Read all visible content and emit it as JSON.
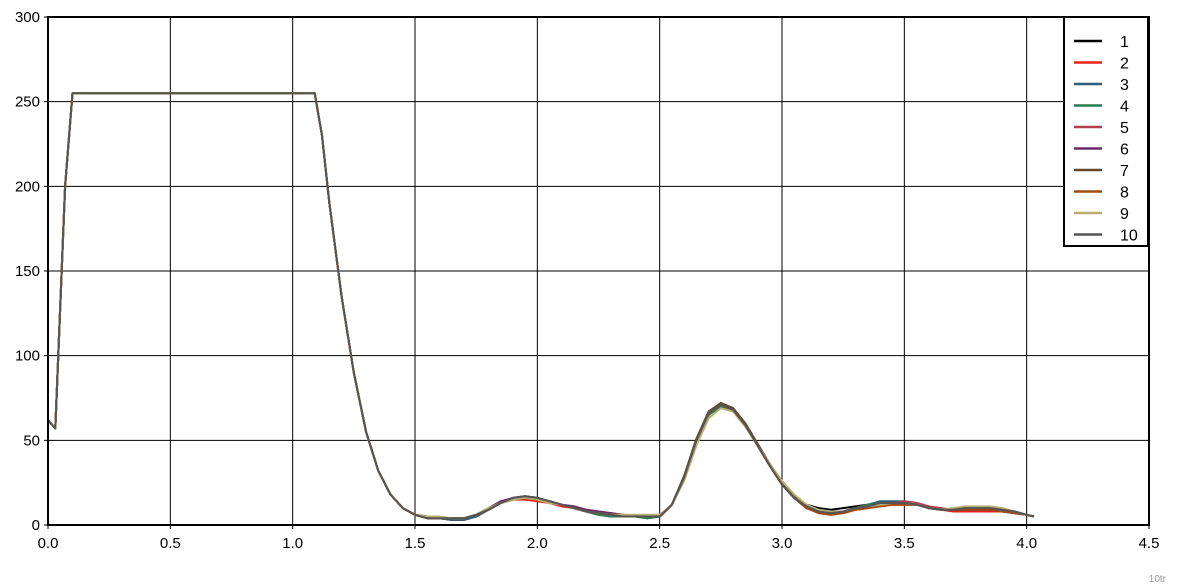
{
  "chart_data": {
    "type": "line",
    "title": "",
    "xlabel": "",
    "ylabel": "",
    "xlim": [
      0.0,
      4.5
    ],
    "ylim": [
      0,
      300
    ],
    "x_ticks": [
      "0.0",
      "0.5",
      "1.0",
      "1.5",
      "2.0",
      "2.5",
      "3.0",
      "3.5",
      "4.0",
      "4.5"
    ],
    "y_ticks": [
      "0",
      "50",
      "100",
      "150",
      "200",
      "250",
      "300"
    ],
    "grid": true,
    "legend_position": "top-right",
    "x": [
      0.0,
      0.03,
      0.07,
      0.1,
      0.3,
      0.6,
      0.9,
      1.09,
      1.12,
      1.15,
      1.2,
      1.25,
      1.3,
      1.35,
      1.4,
      1.45,
      1.5,
      1.55,
      1.6,
      1.65,
      1.7,
      1.75,
      1.8,
      1.85,
      1.9,
      1.95,
      2.0,
      2.05,
      2.1,
      2.15,
      2.2,
      2.25,
      2.3,
      2.35,
      2.4,
      2.45,
      2.5,
      2.55,
      2.6,
      2.65,
      2.7,
      2.75,
      2.8,
      2.85,
      2.9,
      2.95,
      3.0,
      3.05,
      3.1,
      3.15,
      3.2,
      3.25,
      3.3,
      3.35,
      3.4,
      3.45,
      3.5,
      3.55,
      3.6,
      3.65,
      3.7,
      3.75,
      3.8,
      3.85,
      3.9,
      3.95,
      4.0,
      4.03
    ],
    "series": [
      {
        "name": "1",
        "color": "#000000",
        "values": [
          62,
          57,
          200,
          255,
          255,
          255,
          255,
          255,
          230,
          190,
          135,
          90,
          55,
          32,
          18,
          10,
          6,
          4,
          4,
          3,
          3,
          5,
          9,
          13,
          15,
          16,
          15,
          14,
          12,
          10,
          8,
          6,
          6,
          5,
          5,
          5,
          5,
          12,
          28,
          50,
          66,
          71,
          68,
          59,
          47,
          35,
          24,
          16,
          12,
          10,
          9,
          10,
          11,
          12,
          13,
          13,
          13,
          12,
          10,
          9,
          9,
          10,
          10,
          10,
          9,
          8,
          6,
          5
        ]
      },
      {
        "name": "2",
        "color": "#e8201a",
        "values": [
          62,
          57,
          200,
          255,
          255,
          255,
          255,
          255,
          230,
          190,
          135,
          90,
          55,
          32,
          18,
          10,
          6,
          4,
          4,
          3,
          3,
          5,
          9,
          13,
          15,
          15,
          14,
          13,
          11,
          10,
          8,
          7,
          6,
          5,
          5,
          5,
          5,
          12,
          28,
          50,
          66,
          72,
          69,
          59,
          47,
          35,
          24,
          16,
          10,
          7,
          6,
          7,
          9,
          10,
          11,
          12,
          12,
          12,
          10,
          9,
          8,
          8,
          8,
          8,
          8,
          7,
          6,
          5
        ]
      },
      {
        "name": "3",
        "color": "#2b5f7a",
        "values": [
          62,
          57,
          200,
          255,
          255,
          255,
          255,
          255,
          230,
          190,
          135,
          90,
          55,
          32,
          18,
          10,
          6,
          4,
          4,
          3,
          3,
          5,
          9,
          13,
          16,
          17,
          16,
          14,
          12,
          10,
          8,
          6,
          5,
          5,
          5,
          4,
          5,
          12,
          27,
          49,
          65,
          70,
          68,
          59,
          47,
          35,
          25,
          17,
          11,
          8,
          7,
          8,
          10,
          12,
          14,
          14,
          14,
          13,
          11,
          9,
          9,
          10,
          10,
          10,
          9,
          8,
          6,
          5
        ]
      },
      {
        "name": "4",
        "color": "#2a7d4f",
        "values": [
          62,
          57,
          200,
          255,
          255,
          255,
          255,
          255,
          230,
          190,
          135,
          90,
          55,
          32,
          18,
          10,
          6,
          4,
          4,
          4,
          4,
          6,
          9,
          13,
          16,
          17,
          16,
          14,
          12,
          10,
          8,
          6,
          5,
          5,
          5,
          4,
          5,
          12,
          27,
          49,
          65,
          70,
          68,
          59,
          47,
          35,
          24,
          16,
          10,
          8,
          7,
          8,
          10,
          12,
          13,
          13,
          13,
          12,
          10,
          9,
          9,
          10,
          10,
          10,
          9,
          8,
          6,
          5
        ]
      },
      {
        "name": "5",
        "color": "#b04050",
        "values": [
          62,
          57,
          200,
          255,
          255,
          255,
          255,
          255,
          230,
          190,
          135,
          90,
          55,
          32,
          18,
          10,
          6,
          4,
          4,
          4,
          4,
          6,
          10,
          13,
          15,
          16,
          15,
          14,
          12,
          11,
          9,
          8,
          7,
          6,
          5,
          5,
          5,
          12,
          28,
          50,
          66,
          71,
          68,
          59,
          47,
          35,
          24,
          16,
          10,
          8,
          7,
          8,
          9,
          11,
          12,
          13,
          14,
          13,
          11,
          10,
          9,
          9,
          9,
          9,
          9,
          8,
          6,
          5
        ]
      },
      {
        "name": "6",
        "color": "#6a2a6a",
        "values": [
          62,
          57,
          200,
          255,
          255,
          255,
          255,
          255,
          230,
          190,
          135,
          90,
          55,
          32,
          18,
          10,
          6,
          5,
          4,
          4,
          4,
          6,
          10,
          14,
          16,
          17,
          16,
          14,
          12,
          11,
          9,
          8,
          7,
          6,
          5,
          5,
          5,
          12,
          28,
          50,
          66,
          72,
          69,
          60,
          48,
          36,
          25,
          17,
          11,
          8,
          7,
          8,
          9,
          10,
          12,
          13,
          13,
          12,
          10,
          9,
          9,
          9,
          9,
          9,
          8,
          7,
          6,
          5
        ]
      },
      {
        "name": "7",
        "color": "#5e4a28",
        "values": [
          62,
          57,
          200,
          255,
          255,
          255,
          255,
          255,
          230,
          190,
          135,
          90,
          55,
          32,
          18,
          10,
          6,
          5,
          4,
          4,
          4,
          6,
          9,
          13,
          15,
          16,
          15,
          14,
          12,
          10,
          8,
          7,
          6,
          5,
          5,
          5,
          5,
          12,
          29,
          51,
          67,
          72,
          69,
          60,
          48,
          36,
          25,
          17,
          11,
          8,
          7,
          8,
          10,
          11,
          12,
          13,
          13,
          12,
          10,
          9,
          9,
          9,
          10,
          10,
          9,
          8,
          6,
          5
        ]
      },
      {
        "name": "8",
        "color": "#a04a10",
        "values": [
          62,
          57,
          200,
          255,
          255,
          255,
          255,
          255,
          230,
          190,
          135,
          90,
          55,
          32,
          18,
          10,
          6,
          4,
          4,
          4,
          4,
          6,
          9,
          13,
          15,
          16,
          15,
          14,
          12,
          10,
          8,
          7,
          6,
          6,
          5,
          5,
          5,
          12,
          28,
          50,
          66,
          71,
          68,
          59,
          47,
          35,
          24,
          16,
          10,
          7,
          6,
          7,
          9,
          10,
          11,
          12,
          12,
          12,
          10,
          9,
          9,
          9,
          9,
          9,
          8,
          7,
          6,
          5
        ]
      },
      {
        "name": "9",
        "color": "#b9b070",
        "values": [
          62,
          57,
          200,
          255,
          255,
          255,
          255,
          255,
          230,
          190,
          135,
          90,
          55,
          32,
          18,
          10,
          6,
          5,
          5,
          4,
          4,
          6,
          10,
          13,
          15,
          16,
          15,
          13,
          12,
          10,
          8,
          7,
          6,
          6,
          6,
          6,
          6,
          12,
          26,
          47,
          63,
          69,
          67,
          58,
          47,
          36,
          26,
          18,
          12,
          9,
          8,
          8,
          10,
          11,
          12,
          13,
          13,
          12,
          10,
          9,
          10,
          11,
          11,
          11,
          10,
          8,
          6,
          5
        ]
      },
      {
        "name": "10",
        "color": "#555555",
        "values": [
          62,
          57,
          200,
          255,
          255,
          255,
          255,
          255,
          230,
          190,
          135,
          90,
          55,
          32,
          18,
          10,
          6,
          4,
          4,
          4,
          4,
          6,
          9,
          13,
          16,
          17,
          16,
          14,
          12,
          10,
          8,
          7,
          6,
          5,
          5,
          5,
          5,
          12,
          28,
          50,
          66,
          71,
          68,
          59,
          47,
          35,
          24,
          16,
          11,
          8,
          7,
          8,
          10,
          11,
          13,
          13,
          13,
          12,
          10,
          9,
          9,
          10,
          10,
          10,
          9,
          8,
          6,
          5
        ]
      }
    ],
    "corner_label": "10tr"
  }
}
